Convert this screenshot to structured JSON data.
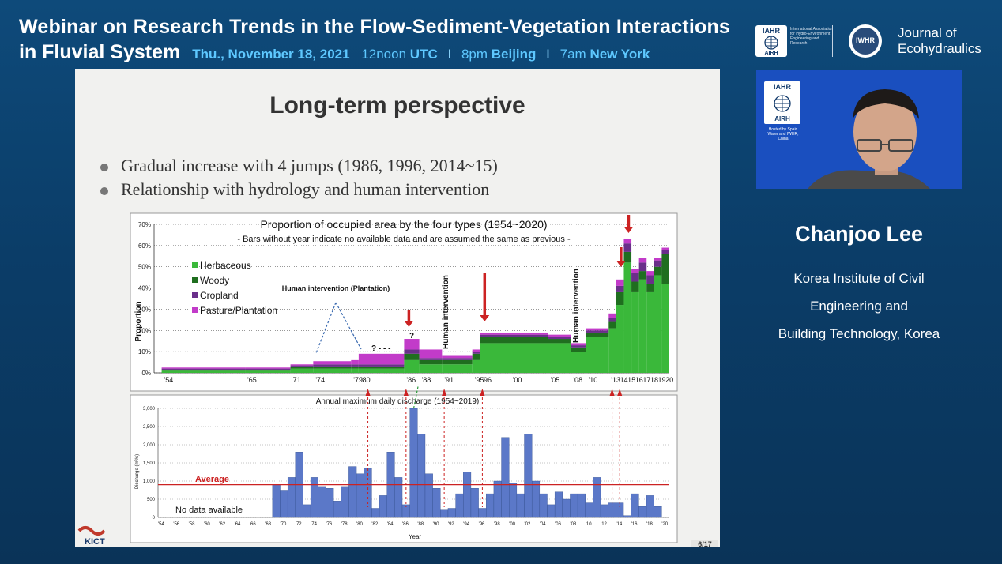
{
  "header": {
    "title_line1": "Webinar on Research Trends in the Flow-Sediment-Vegetation Interactions",
    "title_line2": "in Fluvial System",
    "date": "Thu., November 18, 2021",
    "time1_prefix": "12noon",
    "time1_zone": "UTC",
    "time2_prefix": "8pm",
    "time2_zone": "Beijing",
    "time3_prefix": "7am",
    "time3_zone": "New York",
    "separator": "I",
    "org_logo_text": "IAHR",
    "org_logo_sub": "AIRH",
    "org_full": "International Association for Hydro-Environment Engineering and Research",
    "iwhr": "IWHR",
    "journal_line1": "Journal of",
    "journal_line2": "Ecohydraulics"
  },
  "slide": {
    "title": "Long-term perspective",
    "bullets": [
      "Gradual increase with 4 jumps (1986, 1996, 2014~15)",
      "Relationship with hydrology and human intervention"
    ],
    "page": "6/17",
    "logo_text": "KICT",
    "top_chart_title": "Proportion of occupied area by the four types (1954~2020)",
    "top_chart_subtitle": "- Bars without year indicate no available data and are assumed the same as previous -",
    "ylabel_top": "Proportion",
    "legend": [
      "Herbaceous",
      "Woody",
      "Cropland",
      "Pasture/Plantation"
    ],
    "annot_plantation": "Human intervention (Plantation)",
    "annot_human": "Human intervention",
    "question_marks": "? - - -",
    "question_86": "?",
    "bottom_chart_title": "Annual maximum daily discharge (1954~2019)",
    "ylabel_bottom": "Discharge (m³/s)",
    "average_label": "Average",
    "nodata_label": "No data available",
    "xlabel_bottom": "Year"
  },
  "speaker": {
    "name": "Chanjoo Lee",
    "aff1": "Korea Institute of Civil",
    "aff2": "Engineering and",
    "aff3": "Building Technology, Korea",
    "video_logo": "IAHR",
    "video_logo_sub": "AIRH",
    "hosted_by": "Hosted by Spain Water and IWHR, China"
  },
  "colors": {
    "herb": "#3ab83a",
    "woody": "#1f6e1f",
    "crop": "#6a2f8a",
    "pasture": "#c23bc9",
    "discharge": "#5b78c8",
    "avg": "#cc2222",
    "arrow": "#cc2222"
  },
  "chart_data": [
    {
      "type": "bar",
      "title": "Proportion of occupied area by the four types (1954~2020)",
      "ylabel": "Proportion",
      "ylim": [
        0,
        70
      ],
      "yticks": [
        "0%",
        "10%",
        "20%",
        "30%",
        "40%",
        "50%",
        "60%",
        "70%"
      ],
      "xticks": [
        "'54",
        "'65",
        "71",
        "'74",
        "'79",
        "'80",
        "'86",
        "'88",
        "'91",
        "'95",
        "'96",
        "'00",
        "'05",
        "'08",
        "'10",
        "'13",
        "'14",
        "'15",
        "'16",
        "'17",
        "'18",
        "'19",
        "'20"
      ],
      "series_labels": [
        "Herbaceous",
        "Woody",
        "Cropland",
        "Pasture/Plantation"
      ],
      "years": [
        1954,
        1965,
        1971,
        1974,
        1979,
        1980,
        1986,
        1988,
        1991,
        1995,
        1996,
        2000,
        2005,
        2008,
        2010,
        2013,
        2014,
        2015,
        2016,
        2017,
        2018,
        2019,
        2020
      ],
      "herb": [
        1,
        1,
        2,
        2,
        2,
        2,
        6,
        4,
        4,
        6,
        14,
        14,
        14,
        10,
        17,
        21,
        32,
        52,
        38,
        44,
        38,
        46,
        42
      ],
      "woody": [
        0.5,
        0.5,
        1,
        1,
        1,
        1,
        3,
        2,
        2,
        3,
        3,
        3,
        2,
        2,
        2,
        3,
        6,
        5,
        5,
        4,
        4,
        4,
        14
      ],
      "crop": [
        0.5,
        0.5,
        0.5,
        1,
        1,
        1,
        2,
        1,
        1,
        1,
        1,
        1,
        1,
        1,
        1,
        2,
        3,
        4,
        4,
        4,
        4,
        3,
        2
      ],
      "pasture": [
        0.5,
        0.5,
        0.5,
        1.5,
        2,
        5,
        5,
        4,
        1,
        1,
        1,
        1,
        1,
        1,
        1,
        2,
        3,
        2,
        2,
        2,
        2,
        1,
        1
      ]
    },
    {
      "type": "bar",
      "title": "Annual maximum daily discharge (1954~2019)",
      "xlabel": "Year",
      "ylabel": "Discharge (m³/s)",
      "ylim": [
        0,
        3000
      ],
      "yticks": [
        "0",
        "500",
        "1,000",
        "1,500",
        "2,000",
        "2,500",
        "3,000"
      ],
      "xticks": [
        "'54",
        "'56",
        "'58",
        "'60",
        "'62",
        "'64",
        "'66",
        "'68",
        "'70",
        "'72",
        "'74",
        "'76",
        "'78",
        "'80",
        "'82",
        "'84",
        "'86",
        "'88",
        "'90",
        "'92",
        "'94",
        "'96",
        "'98",
        "'00",
        "'02",
        "'04",
        "'06",
        "'08",
        "'10",
        "'12",
        "'14",
        "'16",
        "'18",
        "'20"
      ],
      "start_year": 1969,
      "values": [
        900,
        750,
        1100,
        1800,
        350,
        1100,
        850,
        800,
        450,
        850,
        1400,
        1200,
        1350,
        250,
        600,
        1800,
        1100,
        350,
        3000,
        2300,
        1200,
        800,
        200,
        250,
        650,
        1250,
        800,
        250,
        650,
        1000,
        2200,
        950,
        650,
        2300,
        1000,
        650,
        350,
        700,
        500,
        650,
        650,
        400,
        1100,
        350,
        400,
        400,
        50,
        650,
        300,
        600,
        300
      ],
      "average": 900
    }
  ]
}
